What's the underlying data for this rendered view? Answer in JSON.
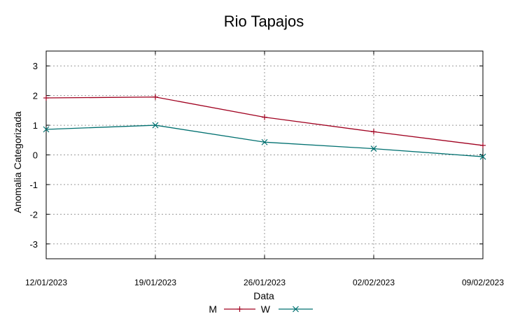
{
  "chart_data": {
    "type": "line",
    "title": "Rio Tapajos",
    "xlabel": "Data",
    "ylabel": "Anomalia Categorizada",
    "categories": [
      "12/01/2023",
      "19/01/2023",
      "26/01/2023",
      "02/02/2023",
      "09/02/2023"
    ],
    "ylim": [
      -3.5,
      3.5
    ],
    "yticks": [
      "3",
      "2",
      "1",
      "0",
      "-1",
      "-2",
      "-3"
    ],
    "grid": true,
    "legend_position": "bottom-center",
    "series": [
      {
        "name": "M",
        "color": "#a0001f",
        "marker": "plus",
        "values": [
          1.92,
          1.95,
          1.27,
          0.78,
          0.32
        ]
      },
      {
        "name": "W",
        "color": "#007070",
        "marker": "x",
        "values": [
          0.86,
          1.0,
          0.43,
          0.21,
          -0.06
        ]
      }
    ]
  }
}
